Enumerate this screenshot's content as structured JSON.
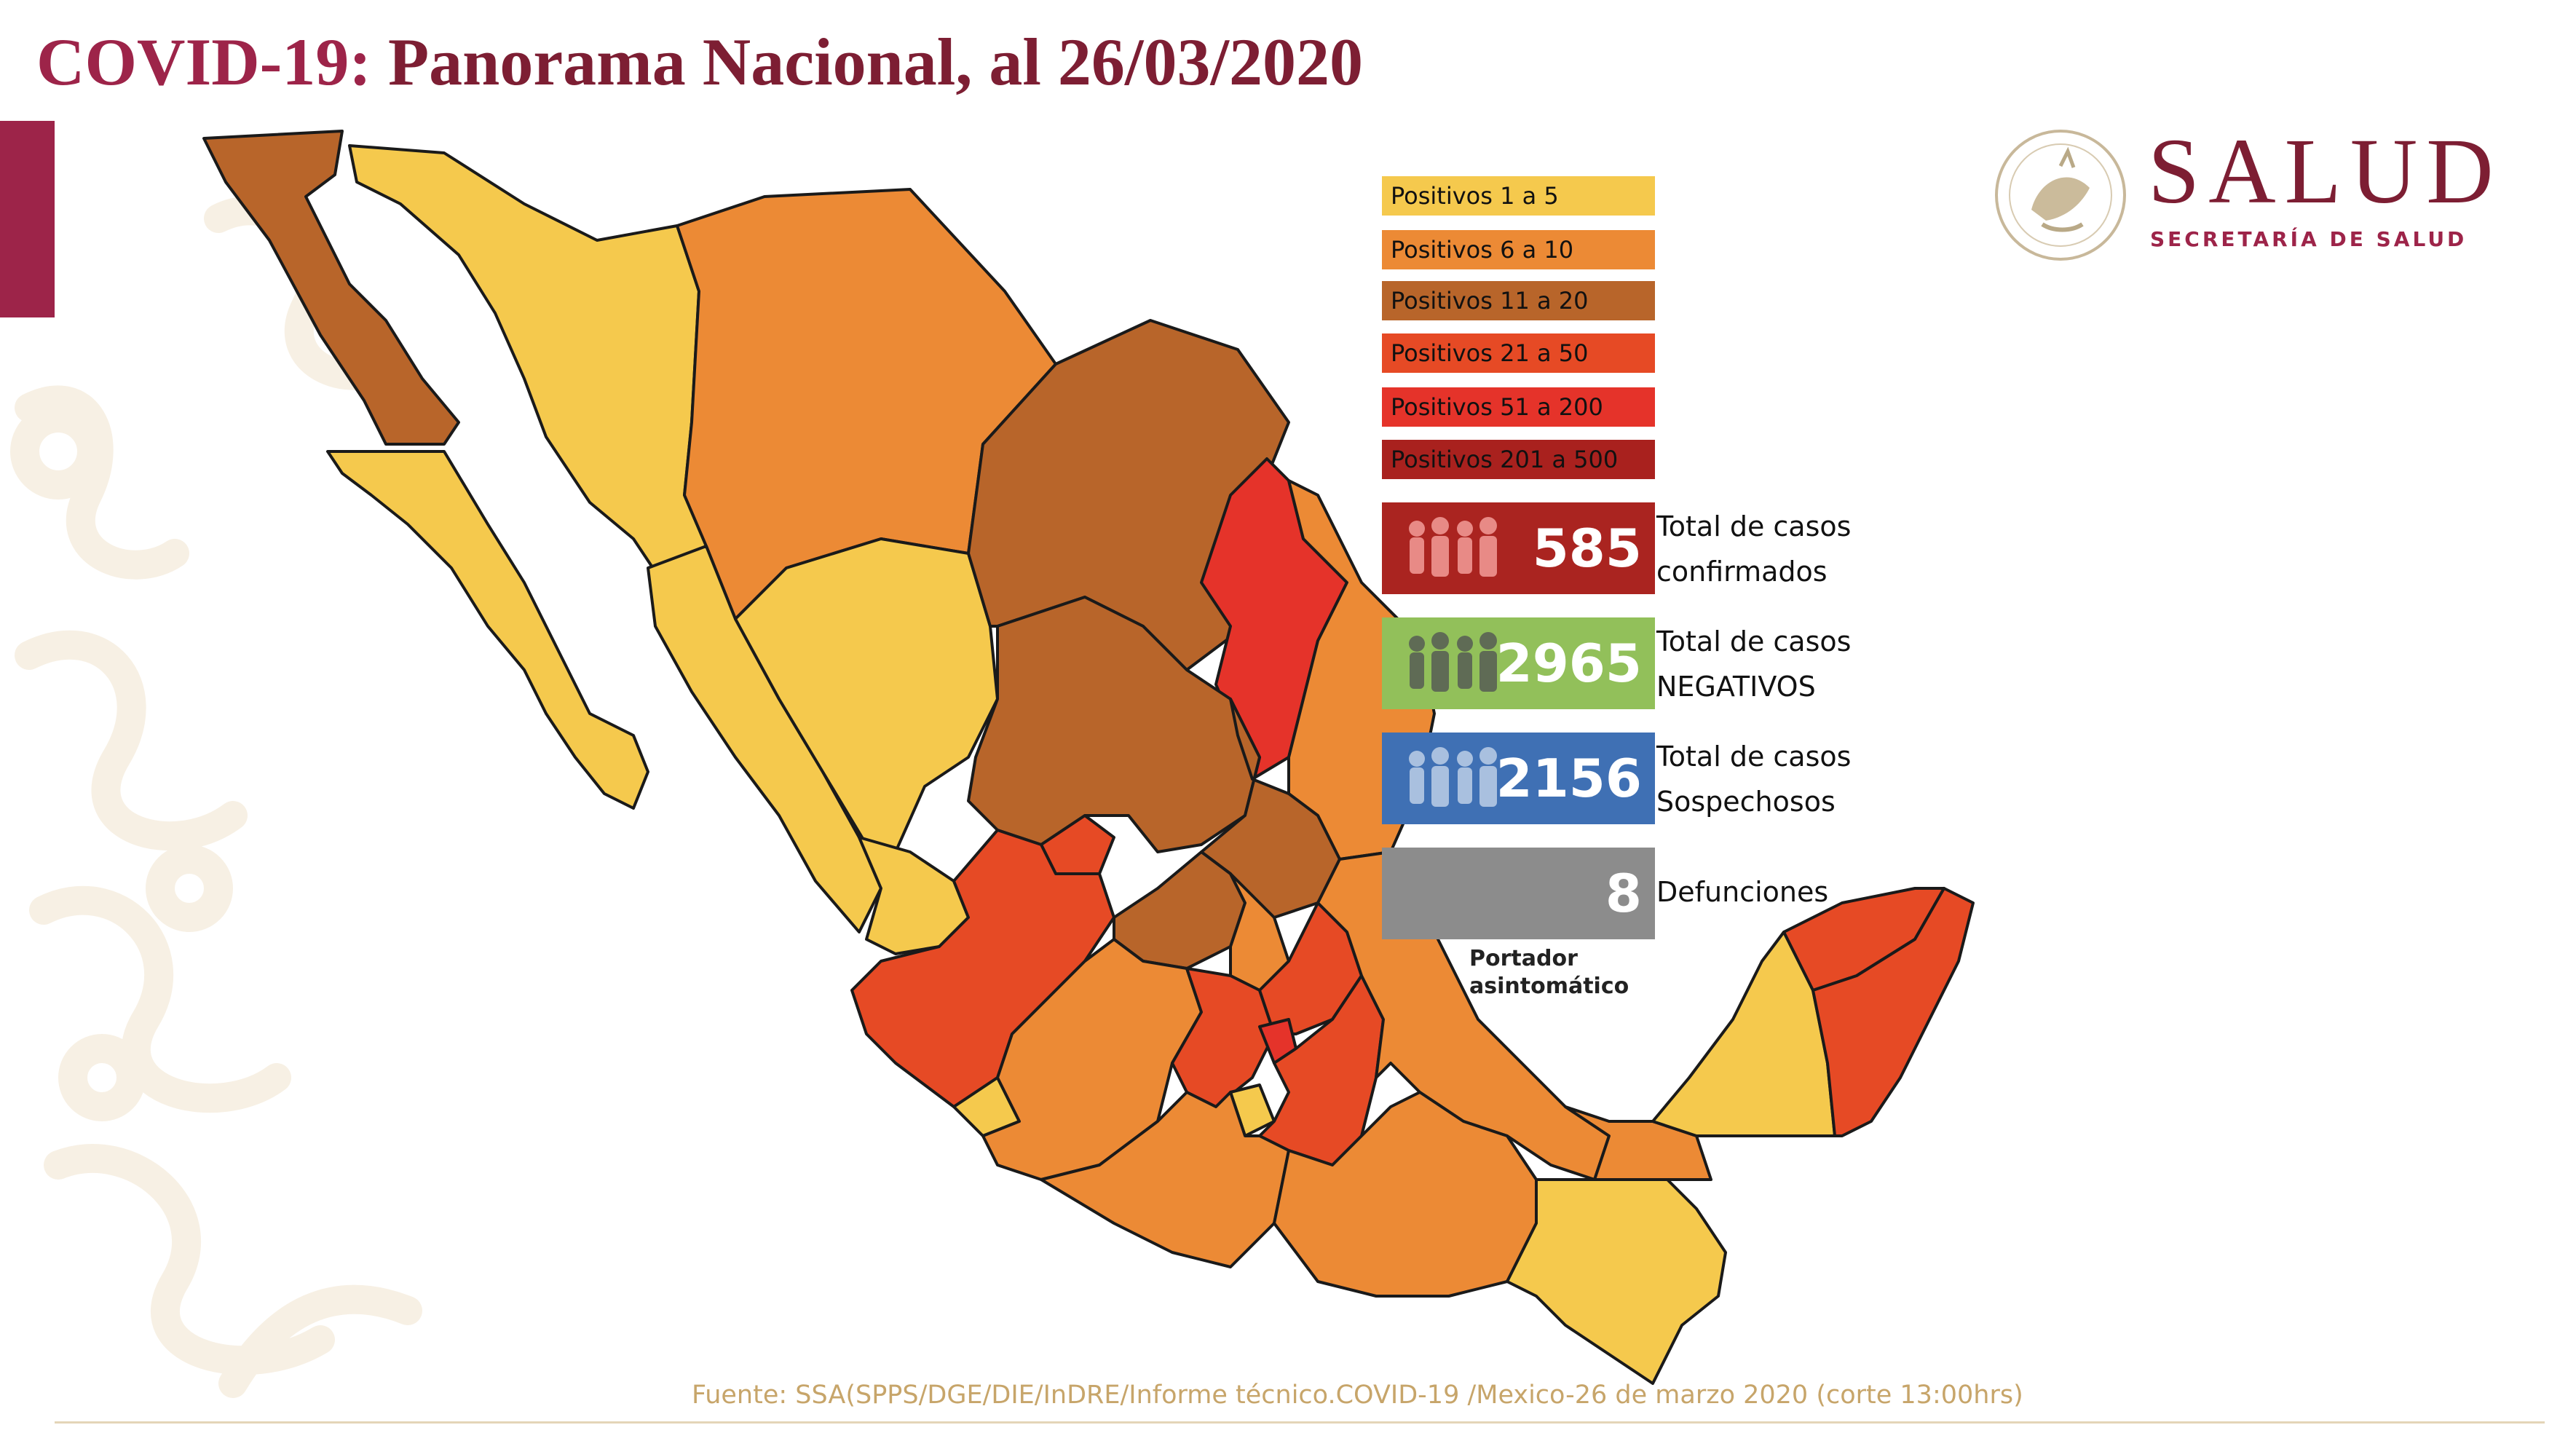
{
  "header": {
    "title_prefix": "COVID-19:",
    "title_rest": " Panorama Nacional, al 26/03/2020"
  },
  "branding": {
    "logo_name": "SALUD",
    "logo_sub": "SECRETARÍA DE SALUD",
    "seal_icon": "mexican-coat-of-arms-seal"
  },
  "legend": [
    {
      "label": "Positivos 1 a 5",
      "color": "#f5c94d"
    },
    {
      "label": "Positivos 6 a 10",
      "color": "#ec8a35"
    },
    {
      "label": "Positivos 11 a 20",
      "color": "#b8652a"
    },
    {
      "label": "Positivos 21 a 50",
      "color": "#e64a25"
    },
    {
      "label": "Positivos 51 a 200",
      "color": "#e5332a"
    },
    {
      "label": "Positivos 201 a 500",
      "color": "#a9211e"
    }
  ],
  "stats": [
    {
      "value": "585",
      "label1": "Total de casos",
      "label2": "confirmados",
      "color": "#aa2420",
      "icon": "people-group-icon"
    },
    {
      "value": "2965",
      "label1": "Total de casos",
      "label2": "NEGATIVOS",
      "color": "#92c05a",
      "icon": "people-group-icon"
    },
    {
      "value": "2156",
      "label1": "Total de casos",
      "label2": "Sospechosos",
      "color": "#3f70b4",
      "icon": "people-group-icon"
    },
    {
      "value": "8",
      "label1": "Defunciones",
      "label2": "",
      "color": "#8c8c8c",
      "icon": ""
    }
  ],
  "portador": {
    "line1": "Portador",
    "line2": "asintomático"
  },
  "source": "Fuente: SSA(SPPS/DGE/DIE/InDRE/Informe técnico.COVID-19 /Mexico-26 de marzo 2020 (corte 13:00hrs)",
  "map": {
    "colors": {
      "c1": "#f5c94d",
      "c2": "#ec8a35",
      "c3": "#b8652a",
      "c4": "#e64a25",
      "c5": "#e5332a",
      "border": "#1a1a1a"
    }
  }
}
